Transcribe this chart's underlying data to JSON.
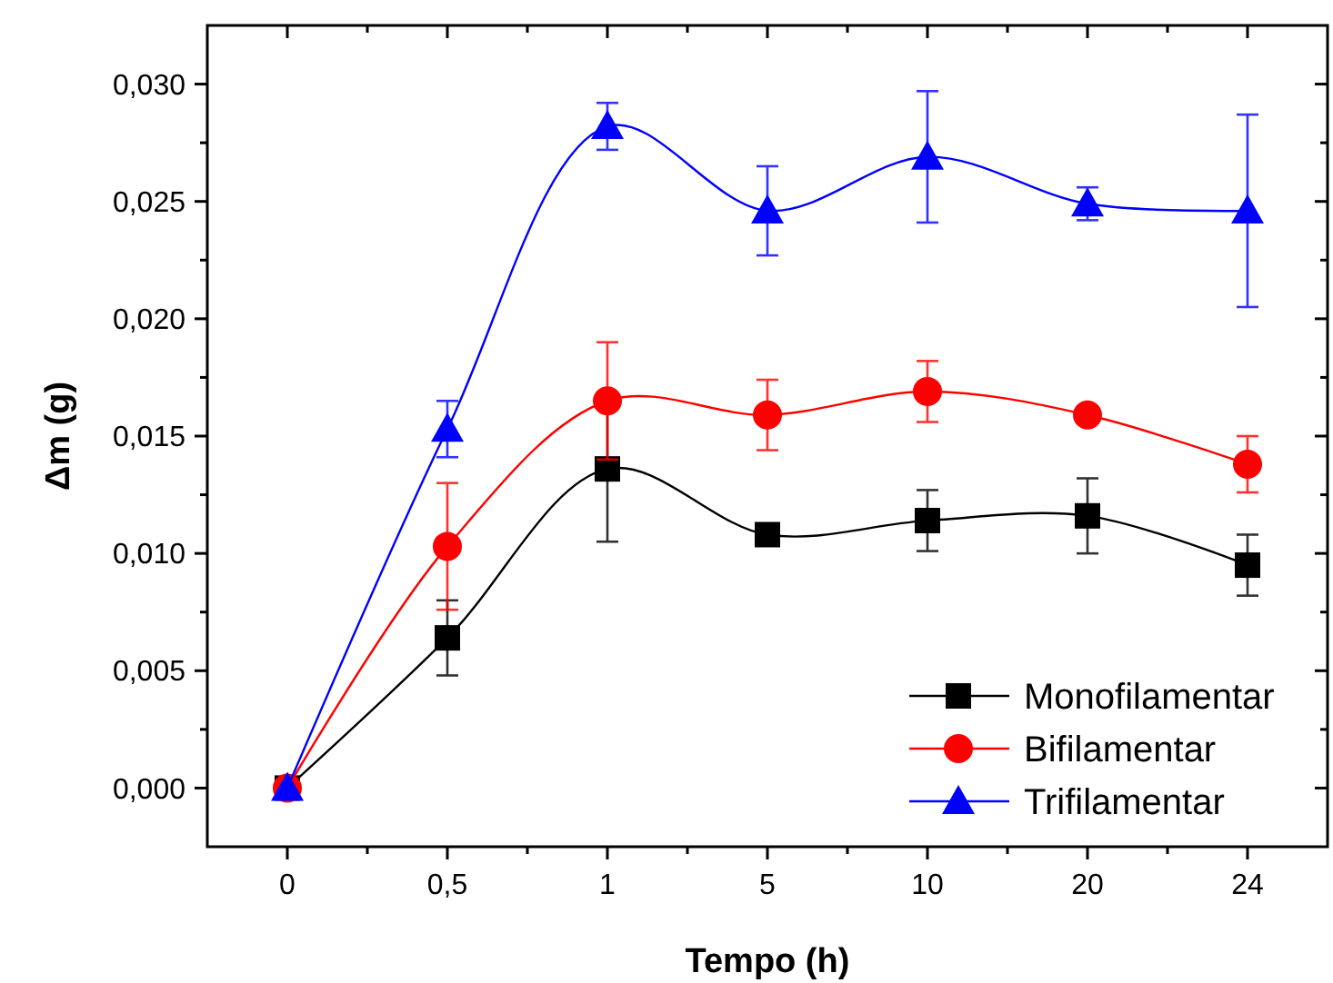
{
  "chart_data": {
    "type": "line",
    "xlabel": "Tempo (h)",
    "ylabel": "Δm (g)",
    "categories": [
      "0",
      "0,5",
      "1",
      "5",
      "10",
      "20",
      "24"
    ],
    "ylim": [
      -0.0025,
      0.0325
    ],
    "yticks": [
      {
        "value": 0,
        "label": "0,000"
      },
      {
        "value": 0.0025,
        "label": null
      },
      {
        "value": 0.005,
        "label": "0,005"
      },
      {
        "value": 0.0075,
        "label": null
      },
      {
        "value": 0.01,
        "label": "0,010"
      },
      {
        "value": 0.0125,
        "label": null
      },
      {
        "value": 0.015,
        "label": "0,015"
      },
      {
        "value": 0.0175,
        "label": null
      },
      {
        "value": 0.02,
        "label": "0,020"
      },
      {
        "value": 0.0225,
        "label": null
      },
      {
        "value": 0.025,
        "label": "0,025"
      },
      {
        "value": 0.0275,
        "label": null
      },
      {
        "value": 0.03,
        "label": "0,030"
      }
    ],
    "legend": "bottom right",
    "grid": false,
    "line_style": "solid",
    "series": [
      {
        "name": "Monofilamentar",
        "color": "#000000",
        "marker": "square",
        "values": [
          0,
          0.0064,
          0.0136,
          0.0108,
          0.0114,
          0.0116,
          0.0095
        ],
        "errors": [
          null,
          0.0016,
          0.0031,
          null,
          0.0013,
          0.0016,
          0.0013
        ]
      },
      {
        "name": "Bifilamentar",
        "color": "#ff0000",
        "marker": "circle",
        "values": [
          0,
          0.0103,
          0.0165,
          0.0159,
          0.0169,
          0.0159,
          0.0138
        ],
        "errors": [
          null,
          0.0027,
          0.0025,
          0.0015,
          0.0013,
          null,
          0.0012
        ]
      },
      {
        "name": "Trifilamentar",
        "color": "#0000ff",
        "marker": "triangle",
        "values": [
          0,
          0.0153,
          0.0282,
          0.0246,
          0.0269,
          0.0249,
          0.0246
        ],
        "errors": [
          null,
          0.0012,
          0.001,
          0.0019,
          0.0028,
          0.0007,
          0.0041
        ]
      }
    ]
  }
}
